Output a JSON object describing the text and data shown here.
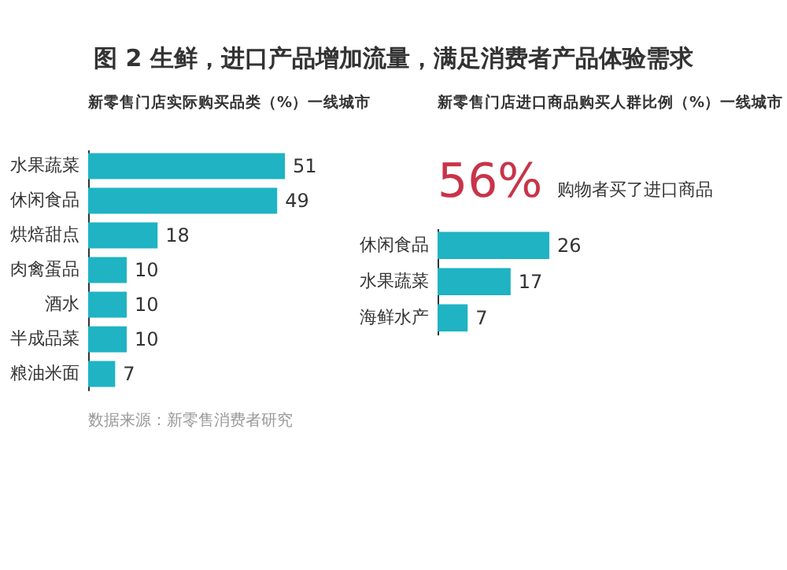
{
  "chart_data": [
    {
      "type": "bar",
      "orientation": "horizontal",
      "title": "图 2  生鲜，进口产品增加流量，满足消费者产品体验需求",
      "subtitle": "新零售门店实际购买品类（%）一线城市",
      "categories": [
        "水果蔬菜",
        "休闲食品",
        "烘焙甜点",
        "肉禽蛋品",
        "酒水",
        "半成品菜",
        "粮油米面"
      ],
      "values": [
        51,
        49,
        18,
        10,
        10,
        10,
        7
      ],
      "color": "#1fb3c3",
      "data_labels": true,
      "annotations": [
        "数据来源：新零售消费者研究"
      ]
    },
    {
      "type": "bar",
      "orientation": "horizontal",
      "subtitle": "新零售门店进口商品购买人群比例（%）一线城市",
      "categories": [
        "休闲食品",
        "水果蔬菜",
        "海鲜水产"
      ],
      "values": [
        26,
        17,
        7
      ],
      "color": "#1fb3c3",
      "data_labels": true,
      "annotations": [
        "56%",
        "购物者买了进口商品"
      ]
    }
  ]
}
